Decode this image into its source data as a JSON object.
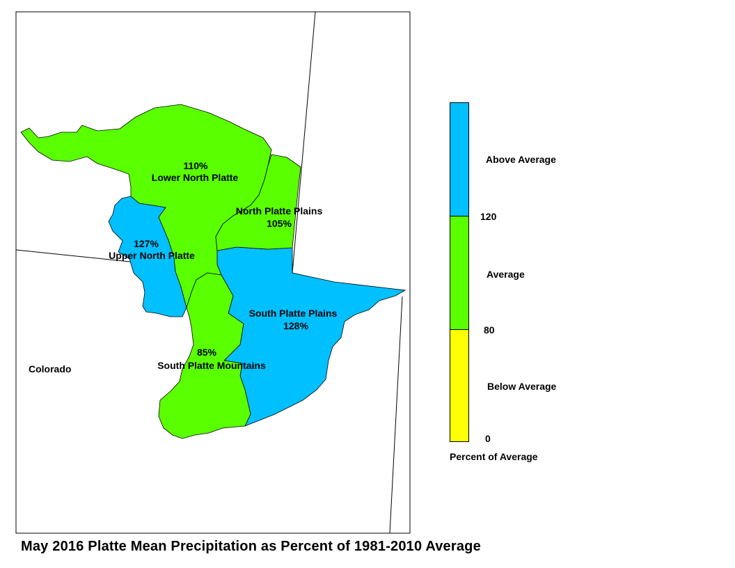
{
  "title": "May 2016 Platte Mean Precipitation as Percent of 1981-2010 Average",
  "state_label": "Colorado",
  "basins": [
    {
      "name": "Lower North Platte",
      "percent": "110%",
      "category": "Average"
    },
    {
      "name": "North Platte Plains",
      "percent": "105%",
      "category": "Average"
    },
    {
      "name": "Upper North Platte",
      "percent": "127%",
      "category": "Above Average"
    },
    {
      "name": "South Platte Plains",
      "percent": "128%",
      "category": "Above Average"
    },
    {
      "name": "South Platte Mountains",
      "percent": "85%",
      "category": "Average"
    }
  ],
  "legend": {
    "title": "Percent of Average",
    "classes": [
      {
        "label": "Above Average",
        "color": "#00c0ff"
      },
      {
        "label": "Average",
        "color": "#5aff00"
      },
      {
        "label": "Below Average",
        "color": "#ffff00"
      }
    ],
    "breaks": [
      "120",
      "80",
      "0"
    ]
  },
  "colors": {
    "above": "#00c0ff",
    "average": "#5aff00",
    "below": "#ffff00",
    "outline": "#000000"
  }
}
